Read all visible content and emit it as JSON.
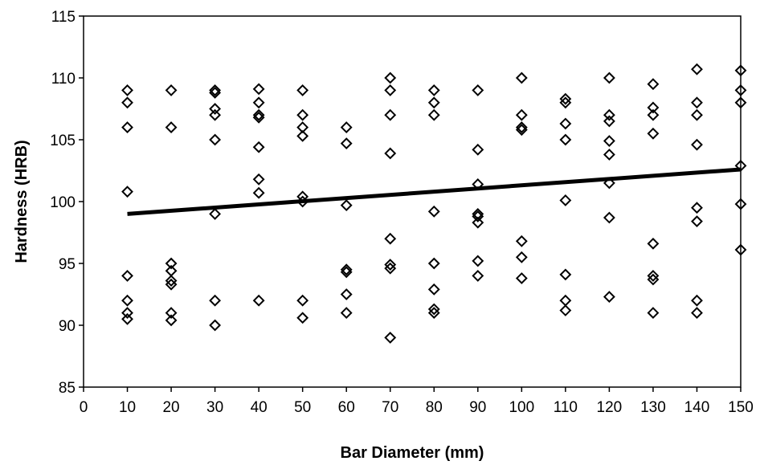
{
  "chart_data": {
    "type": "scatter",
    "title": "",
    "xlabel": "Bar Diameter (mm)",
    "ylabel": "Hardness (HRB)",
    "xlim": [
      0,
      150
    ],
    "ylim": [
      85,
      115
    ],
    "xticks": [
      0,
      10,
      20,
      30,
      40,
      50,
      60,
      70,
      80,
      90,
      100,
      110,
      120,
      130,
      140,
      150
    ],
    "yticks": [
      85,
      90,
      95,
      100,
      105,
      110,
      115
    ],
    "grid": false,
    "legend": "none",
    "marker": "diamond",
    "color": "#000000",
    "points": [
      [
        10,
        109.0
      ],
      [
        10,
        108.0
      ],
      [
        10,
        106.0
      ],
      [
        10,
        100.8
      ],
      [
        10,
        94.0
      ],
      [
        10,
        92.0
      ],
      [
        10,
        91.0
      ],
      [
        10,
        90.5
      ],
      [
        20,
        109.0
      ],
      [
        20,
        106.0
      ],
      [
        20,
        95.0
      ],
      [
        20,
        94.4
      ],
      [
        20,
        93.6
      ],
      [
        20,
        93.3
      ],
      [
        20,
        91.0
      ],
      [
        20,
        90.4
      ],
      [
        30,
        109.0
      ],
      [
        30,
        108.8
      ],
      [
        30,
        107.5
      ],
      [
        30,
        107.0
      ],
      [
        30,
        105.0
      ],
      [
        30,
        99.0
      ],
      [
        30,
        92.0
      ],
      [
        30,
        90.0
      ],
      [
        40,
        109.1
      ],
      [
        40,
        108.0
      ],
      [
        40,
        107.0
      ],
      [
        40,
        106.8
      ],
      [
        40,
        104.4
      ],
      [
        40,
        101.8
      ],
      [
        40,
        100.7
      ],
      [
        40,
        92.0
      ],
      [
        50,
        109.0
      ],
      [
        50,
        107.0
      ],
      [
        50,
        106.0
      ],
      [
        50,
        105.3
      ],
      [
        50,
        100.4
      ],
      [
        50,
        100.0
      ],
      [
        50,
        92.0
      ],
      [
        50,
        90.6
      ],
      [
        60,
        106.0
      ],
      [
        60,
        104.7
      ],
      [
        60,
        99.7
      ],
      [
        60,
        94.5
      ],
      [
        60,
        94.3
      ],
      [
        60,
        92.5
      ],
      [
        60,
        91.0
      ],
      [
        70,
        110.0
      ],
      [
        70,
        109.0
      ],
      [
        70,
        107.0
      ],
      [
        70,
        103.9
      ],
      [
        70,
        97.0
      ],
      [
        70,
        94.9
      ],
      [
        70,
        94.6
      ],
      [
        70,
        89.0
      ],
      [
        80,
        109.0
      ],
      [
        80,
        108.0
      ],
      [
        80,
        107.0
      ],
      [
        80,
        99.2
      ],
      [
        80,
        95.0
      ],
      [
        80,
        92.9
      ],
      [
        80,
        91.3
      ],
      [
        80,
        91.0
      ],
      [
        90,
        109.0
      ],
      [
        90,
        104.2
      ],
      [
        90,
        101.4
      ],
      [
        90,
        99.0
      ],
      [
        90,
        98.8
      ],
      [
        90,
        98.3
      ],
      [
        90,
        95.2
      ],
      [
        90,
        94.0
      ],
      [
        100,
        110.0
      ],
      [
        100,
        107.0
      ],
      [
        100,
        106.0
      ],
      [
        100,
        105.8
      ],
      [
        100,
        96.8
      ],
      [
        100,
        95.5
      ],
      [
        100,
        93.8
      ],
      [
        110,
        108.3
      ],
      [
        110,
        108.0
      ],
      [
        110,
        106.3
      ],
      [
        110,
        105.0
      ],
      [
        110,
        100.1
      ],
      [
        110,
        94.1
      ],
      [
        110,
        92.0
      ],
      [
        110,
        91.2
      ],
      [
        120,
        110.0
      ],
      [
        120,
        107.0
      ],
      [
        120,
        106.5
      ],
      [
        120,
        104.9
      ],
      [
        120,
        103.8
      ],
      [
        120,
        101.5
      ],
      [
        120,
        98.7
      ],
      [
        120,
        92.3
      ],
      [
        130,
        109.5
      ],
      [
        130,
        107.6
      ],
      [
        130,
        107.0
      ],
      [
        130,
        105.5
      ],
      [
        130,
        96.6
      ],
      [
        130,
        94.0
      ],
      [
        130,
        93.7
      ],
      [
        130,
        91.0
      ],
      [
        140,
        110.7
      ],
      [
        140,
        108.0
      ],
      [
        140,
        107.0
      ],
      [
        140,
        104.6
      ],
      [
        140,
        99.5
      ],
      [
        140,
        98.4
      ],
      [
        140,
        92.0
      ],
      [
        140,
        91.0
      ],
      [
        150,
        110.6
      ],
      [
        150,
        109.0
      ],
      [
        150,
        108.0
      ],
      [
        150,
        102.9
      ],
      [
        150,
        99.8
      ],
      [
        150,
        96.1
      ]
    ],
    "trendline": {
      "type": "linear",
      "x": [
        10,
        150
      ],
      "y": [
        99.0,
        102.6
      ]
    }
  }
}
